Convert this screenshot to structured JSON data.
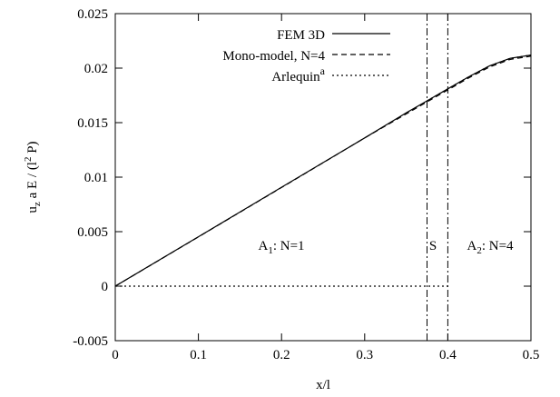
{
  "chart_data": {
    "type": "line",
    "x_label": "x/l",
    "y_label": [
      "u",
      "z",
      " a E / (l",
      "2",
      " P)"
    ],
    "xlim": [
      0,
      0.5
    ],
    "ylim": [
      -0.005,
      0.025
    ],
    "xticks": [
      0,
      0.1,
      0.2,
      0.3,
      0.4,
      0.5
    ],
    "yticks": [
      -0.005,
      0,
      0.005,
      0.01,
      0.015,
      0.02,
      0.025
    ],
    "legend": "top-right",
    "vlines": [
      0.375,
      0.4
    ],
    "annotations": [
      {
        "text": "A",
        "sub": "1",
        "rest": ": N=1"
      },
      {
        "text": "S"
      },
      {
        "text": "A",
        "sub": "2",
        "rest": ": N=4"
      }
    ],
    "series": [
      {
        "name": "FEM 3D",
        "color": "#000000",
        "dash": "solid",
        "x": [
          0,
          0.1,
          0.2,
          0.3,
          0.35,
          0.375,
          0.4,
          0.425,
          0.45,
          0.475,
          0.5
        ],
        "values": [
          0,
          0.00453,
          0.00907,
          0.0136,
          0.0159,
          0.017,
          0.0181,
          0.0192,
          0.0202,
          0.0209,
          0.0212
        ]
      },
      {
        "name": "Mono-model, N=4",
        "color": "#000000",
        "dash": "dashed",
        "x": [
          0,
          0.1,
          0.2,
          0.3,
          0.35,
          0.375,
          0.4,
          0.425,
          0.45,
          0.475,
          0.5
        ],
        "values": [
          0,
          0.00452,
          0.00905,
          0.0136,
          0.0158,
          0.0169,
          0.018,
          0.0191,
          0.0201,
          0.0208,
          0.0211
        ]
      },
      {
        "name": "Arlequin",
        "name_sup": "a",
        "color": "#000000",
        "dash": "dotted",
        "x": [
          0,
          0.4,
          0.4,
          0.375,
          0.4,
          0.425,
          0.45,
          0.475,
          0.5
        ],
        "values": [
          0,
          0,
          null,
          0.017,
          0.0181,
          0.0192,
          0.0202,
          0.0209,
          0.0212
        ]
      }
    ]
  }
}
